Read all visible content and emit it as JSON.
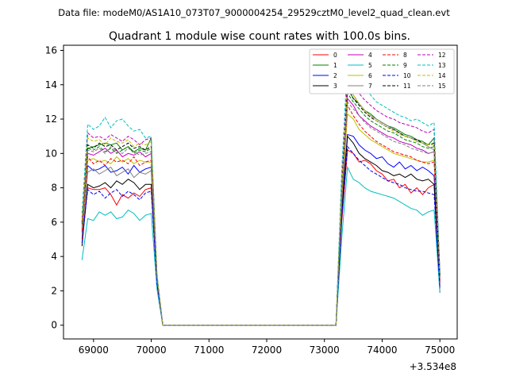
{
  "chart_data": {
    "type": "line",
    "suptitle": "Data file: modeM0/AS1A10_073T07_9000004254_29529cztM0_level2_quad_clean.evt",
    "title": "Quadrant 1 module wise count rates with 100.0s bins.",
    "xlabel": "",
    "ylabel": "",
    "x_offset_label": "+3.534e8",
    "xlim": [
      68480,
      75300
    ],
    "ylim": [
      -0.8,
      16.3
    ],
    "xticks": [
      69000,
      70000,
      71000,
      72000,
      73000,
      74000,
      75000
    ],
    "xtick_labels": [
      "69000",
      "70000",
      "71000",
      "72000",
      "73000",
      "74000",
      "75000"
    ],
    "yticks": [
      0,
      2,
      4,
      6,
      8,
      10,
      12,
      14,
      16
    ],
    "ytick_labels": [
      "0",
      "2",
      "4",
      "6",
      "8",
      "10",
      "12",
      "14",
      "16"
    ],
    "grid": false,
    "legend_position": "top-right",
    "legend_columns": 4,
    "x": [
      68800,
      68900,
      69000,
      69100,
      69200,
      69300,
      69400,
      69500,
      69600,
      69700,
      69800,
      69900,
      70000,
      70100,
      70200,
      70300,
      70400,
      70500,
      70600,
      70700,
      70800,
      70900,
      71000,
      71100,
      71200,
      71300,
      71400,
      71500,
      71600,
      71700,
      71800,
      71900,
      72000,
      72100,
      72200,
      72300,
      72400,
      72500,
      72600,
      72700,
      72800,
      72900,
      73000,
      73100,
      73200,
      73300,
      73400,
      73500,
      73600,
      73700,
      73800,
      73900,
      74000,
      74100,
      74200,
      74300,
      74400,
      74500,
      74600,
      74700,
      74800,
      74900,
      75000
    ],
    "series": [
      {
        "name": "0",
        "color": "#ff0000",
        "dash": "solid",
        "values": [
          5.0,
          8.0,
          7.9,
          7.9,
          8.0,
          7.6,
          7.0,
          7.6,
          7.4,
          7.7,
          7.5,
          7.9,
          8.0,
          2.5,
          0,
          0,
          0,
          0,
          0,
          0,
          0,
          0,
          0,
          0,
          0,
          0,
          0,
          0,
          0,
          0,
          0,
          0,
          0,
          0,
          0,
          0,
          0,
          0,
          0,
          0,
          0,
          0,
          0,
          0,
          0,
          6.0,
          10.2,
          10.0,
          9.5,
          9.6,
          9.4,
          9.0,
          8.8,
          8.4,
          8.5,
          8.0,
          8.2,
          7.7,
          8.0,
          7.6,
          8.0,
          8.2,
          2.5
        ]
      },
      {
        "name": "1",
        "color": "#008000",
        "dash": "solid",
        "values": [
          6.0,
          10.3,
          10.4,
          10.5,
          10.6,
          10.5,
          10.6,
          10.2,
          10.4,
          10.1,
          10.3,
          10.2,
          10.9,
          2.8,
          0,
          0,
          0,
          0,
          0,
          0,
          0,
          0,
          0,
          0,
          0,
          0,
          0,
          0,
          0,
          0,
          0,
          0,
          0,
          0,
          0,
          0,
          0,
          0,
          0,
          0,
          0,
          0,
          0,
          0,
          0,
          8.0,
          13.8,
          13.2,
          12.9,
          12.5,
          12.3,
          12.0,
          11.8,
          11.6,
          11.5,
          11.3,
          11.1,
          11.0,
          10.8,
          10.7,
          10.5,
          10.9,
          3.0
        ]
      },
      {
        "name": "2",
        "color": "#0000ff",
        "dash": "solid",
        "values": [
          5.4,
          9.3,
          9.0,
          9.1,
          9.3,
          8.9,
          9.0,
          9.2,
          8.8,
          9.3,
          8.9,
          9.1,
          9.2,
          2.6,
          0,
          0,
          0,
          0,
          0,
          0,
          0,
          0,
          0,
          0,
          0,
          0,
          0,
          0,
          0,
          0,
          0,
          0,
          0,
          0,
          0,
          0,
          0,
          0,
          0,
          0,
          0,
          0,
          0,
          0,
          0,
          7.0,
          11.1,
          11.0,
          10.5,
          10.2,
          10.0,
          9.7,
          9.8,
          9.4,
          9.2,
          9.5,
          9.1,
          9.3,
          9.0,
          9.2,
          9.0,
          8.7,
          2.2
        ]
      },
      {
        "name": "3",
        "color": "#000000",
        "dash": "solid",
        "values": [
          4.6,
          8.2,
          8.0,
          8.1,
          8.3,
          8.0,
          8.4,
          8.2,
          8.5,
          8.3,
          7.9,
          8.2,
          8.2,
          2.5,
          0,
          0,
          0,
          0,
          0,
          0,
          0,
          0,
          0,
          0,
          0,
          0,
          0,
          0,
          0,
          0,
          0,
          0,
          0,
          0,
          0,
          0,
          0,
          0,
          0,
          0,
          0,
          0,
          0,
          0,
          0,
          6.4,
          11.0,
          10.6,
          10.0,
          9.7,
          9.5,
          9.3,
          9.0,
          8.9,
          8.7,
          8.8,
          8.6,
          8.8,
          8.5,
          8.4,
          8.5,
          8.2,
          1.9
        ]
      },
      {
        "name": "4",
        "color": "#bf00bf",
        "dash": "solid",
        "values": [
          5.8,
          10.0,
          9.9,
          10.1,
          10.3,
          10.0,
          10.2,
          9.8,
          10.0,
          9.9,
          10.1,
          9.8,
          10.0,
          2.8,
          0,
          0,
          0,
          0,
          0,
          0,
          0,
          0,
          0,
          0,
          0,
          0,
          0,
          0,
          0,
          0,
          0,
          0,
          0,
          0,
          0,
          0,
          0,
          0,
          0,
          0,
          0,
          0,
          0,
          0,
          0,
          7.6,
          13.2,
          12.8,
          12.2,
          11.9,
          11.6,
          11.4,
          11.2,
          11.0,
          10.9,
          10.7,
          10.6,
          10.5,
          10.3,
          10.2,
          10.0,
          10.1,
          2.8
        ]
      },
      {
        "name": "5",
        "color": "#00bfbf",
        "dash": "solid",
        "values": [
          3.8,
          6.2,
          6.1,
          6.6,
          6.4,
          6.6,
          6.2,
          6.3,
          6.7,
          6.5,
          6.1,
          6.4,
          6.5,
          2.1,
          0,
          0,
          0,
          0,
          0,
          0,
          0,
          0,
          0,
          0,
          0,
          0,
          0,
          0,
          0,
          0,
          0,
          0,
          0,
          0,
          0,
          0,
          0,
          0,
          0,
          0,
          0,
          0,
          0,
          0,
          0,
          5.0,
          9.2,
          8.5,
          8.3,
          8.0,
          7.8,
          7.7,
          7.6,
          7.5,
          7.4,
          7.2,
          7.0,
          6.8,
          6.7,
          6.4,
          6.6,
          6.7,
          1.9
        ]
      },
      {
        "name": "6",
        "color": "#bfbf00",
        "dash": "solid",
        "values": [
          5.6,
          9.6,
          9.7,
          9.5,
          9.6,
          9.4,
          9.8,
          9.5,
          9.7,
          9.4,
          9.6,
          9.5,
          9.5,
          2.7,
          0,
          0,
          0,
          0,
          0,
          0,
          0,
          0,
          0,
          0,
          0,
          0,
          0,
          0,
          0,
          0,
          0,
          0,
          0,
          0,
          0,
          0,
          0,
          0,
          0,
          0,
          0,
          0,
          0,
          0,
          0,
          7.2,
          12.3,
          12.0,
          11.4,
          11.1,
          10.8,
          10.6,
          10.4,
          10.2,
          10.0,
          9.9,
          9.8,
          9.7,
          9.6,
          9.5,
          9.5,
          9.6,
          2.6
        ]
      },
      {
        "name": "7",
        "color": "#808080",
        "dash": "solid",
        "values": [
          5.2,
          8.9,
          9.1,
          8.8,
          9.0,
          9.2,
          8.7,
          8.9,
          9.1,
          8.6,
          8.9,
          8.8,
          9.0,
          2.6,
          0,
          0,
          0,
          0,
          0,
          0,
          0,
          0,
          0,
          0,
          0,
          0,
          0,
          0,
          0,
          0,
          0,
          0,
          0,
          0,
          0,
          0,
          0,
          0,
          0,
          0,
          0,
          0,
          0,
          0,
          0,
          8.2,
          14.0,
          13.4,
          12.9,
          12.5,
          12.2,
          12.0,
          11.8,
          11.6,
          11.4,
          11.2,
          11.0,
          10.9,
          10.7,
          10.6,
          10.4,
          10.2,
          2.7
        ]
      },
      {
        "name": "8",
        "color": "#ff0000",
        "dash": "dashed",
        "values": [
          5.5,
          9.8,
          9.4,
          9.6,
          9.3,
          9.7,
          9.5,
          9.6,
          9.4,
          9.8,
          9.3,
          9.5,
          9.6,
          2.7,
          0,
          0,
          0,
          0,
          0,
          0,
          0,
          0,
          0,
          0,
          0,
          0,
          0,
          0,
          0,
          0,
          0,
          0,
          0,
          0,
          0,
          0,
          0,
          0,
          0,
          0,
          0,
          0,
          0,
          0,
          0,
          7.4,
          12.8,
          12.2,
          11.7,
          11.3,
          11.0,
          10.7,
          10.5,
          10.3,
          10.1,
          10.0,
          9.9,
          9.8,
          9.6,
          9.5,
          9.4,
          9.5,
          2.6
        ]
      },
      {
        "name": "9",
        "color": "#008000",
        "dash": "dashed",
        "values": [
          5.9,
          10.3,
          10.2,
          10.4,
          10.1,
          10.3,
          10.0,
          10.2,
          10.4,
          10.0,
          10.2,
          10.1,
          10.3,
          2.8,
          0,
          0,
          0,
          0,
          0,
          0,
          0,
          0,
          0,
          0,
          0,
          0,
          0,
          0,
          0,
          0,
          0,
          0,
          0,
          0,
          0,
          0,
          0,
          0,
          0,
          0,
          0,
          0,
          0,
          0,
          0,
          7.8,
          13.5,
          13.0,
          12.6,
          12.2,
          11.9,
          11.7,
          11.5,
          11.3,
          11.2,
          11.0,
          10.8,
          10.7,
          10.6,
          10.4,
          10.3,
          10.4,
          2.8
        ]
      },
      {
        "name": "10",
        "color": "#0000ff",
        "dash": "dashed",
        "values": [
          4.8,
          7.9,
          7.6,
          7.8,
          7.4,
          7.7,
          7.9,
          7.5,
          7.8,
          7.6,
          7.3,
          7.7,
          7.8,
          2.4,
          0,
          0,
          0,
          0,
          0,
          0,
          0,
          0,
          0,
          0,
          0,
          0,
          0,
          0,
          0,
          0,
          0,
          0,
          0,
          0,
          0,
          0,
          0,
          0,
          0,
          0,
          0,
          0,
          0,
          0,
          0,
          6.2,
          10.4,
          10.0,
          9.6,
          9.3,
          9.0,
          8.8,
          8.6,
          8.4,
          8.3,
          8.2,
          8.0,
          7.9,
          7.8,
          7.8,
          7.7,
          7.6,
          2.2
        ]
      },
      {
        "name": "11",
        "color": "#000000",
        "dash": "dashed",
        "values": [
          6.0,
          10.5,
          10.3,
          10.6,
          10.4,
          10.5,
          10.2,
          10.4,
          10.6,
          10.3,
          10.4,
          10.2,
          10.4,
          2.8,
          0,
          0,
          0,
          0,
          0,
          0,
          0,
          0,
          0,
          0,
          0,
          0,
          0,
          0,
          0,
          0,
          0,
          0,
          0,
          0,
          0,
          0,
          0,
          0,
          0,
          0,
          0,
          0,
          0,
          0,
          0,
          7.9,
          13.8,
          13.2,
          12.8,
          12.4,
          12.1,
          11.9,
          11.7,
          11.5,
          11.4,
          11.2,
          11.0,
          10.9,
          10.8,
          10.6,
          10.5,
          10.6,
          2.9
        ]
      },
      {
        "name": "12",
        "color": "#bf00bf",
        "dash": "dashed",
        "values": [
          6.2,
          11.2,
          10.9,
          11.0,
          10.8,
          11.1,
          10.9,
          10.7,
          11.0,
          10.8,
          10.5,
          10.8,
          10.9,
          2.9,
          0,
          0,
          0,
          0,
          0,
          0,
          0,
          0,
          0,
          0,
          0,
          0,
          0,
          0,
          0,
          0,
          0,
          0,
          0,
          0,
          0,
          0,
          0,
          0,
          0,
          0,
          0,
          0,
          0,
          0,
          0,
          8.4,
          14.5,
          14.0,
          13.5,
          13.1,
          12.8,
          12.5,
          12.3,
          12.1,
          12.0,
          11.8,
          11.7,
          11.6,
          11.5,
          11.3,
          11.2,
          11.4,
          3.0
        ]
      },
      {
        "name": "13",
        "color": "#00bfbf",
        "dash": "dashed",
        "values": [
          6.5,
          11.7,
          11.4,
          11.6,
          12.1,
          11.5,
          11.9,
          12.0,
          11.6,
          11.3,
          11.4,
          10.9,
          11.0,
          3.0,
          0,
          0,
          0,
          0,
          0,
          0,
          0,
          0,
          0,
          0,
          0,
          0,
          0,
          0,
          0,
          0,
          0,
          0,
          0,
          0,
          0,
          0,
          0,
          0,
          0,
          0,
          0,
          0,
          0,
          0,
          0,
          9.0,
          15.4,
          14.8,
          14.2,
          13.8,
          13.4,
          13.0,
          12.8,
          12.6,
          12.4,
          12.2,
          12.1,
          11.9,
          12.0,
          11.8,
          11.6,
          11.8,
          3.1
        ]
      },
      {
        "name": "14",
        "color": "#bfbf00",
        "dash": "dashed",
        "values": [
          6.1,
          10.9,
          10.7,
          10.8,
          10.5,
          10.9,
          10.7,
          10.6,
          10.8,
          10.4,
          10.6,
          10.5,
          10.7,
          2.9,
          0,
          0,
          0,
          0,
          0,
          0,
          0,
          0,
          0,
          0,
          0,
          0,
          0,
          0,
          0,
          0,
          0,
          0,
          0,
          0,
          0,
          0,
          0,
          0,
          0,
          0,
          0,
          0,
          0,
          0,
          0,
          8.0,
          13.9,
          13.4,
          12.9,
          12.5,
          12.2,
          11.9,
          11.7,
          11.5,
          11.3,
          11.1,
          11.0,
          10.9,
          10.7,
          10.6,
          10.5,
          10.5,
          2.9
        ]
      },
      {
        "name": "15",
        "color": "#808080",
        "dash": "dashed",
        "values": [
          5.7,
          10.2,
          10.1,
          10.3,
          10.0,
          10.4,
          10.1,
          10.0,
          10.3,
          10.1,
          9.9,
          10.0,
          10.1,
          2.8,
          0,
          0,
          0,
          0,
          0,
          0,
          0,
          0,
          0,
          0,
          0,
          0,
          0,
          0,
          0,
          0,
          0,
          0,
          0,
          0,
          0,
          0,
          0,
          0,
          0,
          0,
          0,
          0,
          0,
          0,
          0,
          7.5,
          13.0,
          12.6,
          12.2,
          11.8,
          11.5,
          11.3,
          11.1,
          10.9,
          10.7,
          10.6,
          10.5,
          10.3,
          10.2,
          10.1,
          10.0,
          10.1,
          2.8
        ]
      }
    ]
  }
}
